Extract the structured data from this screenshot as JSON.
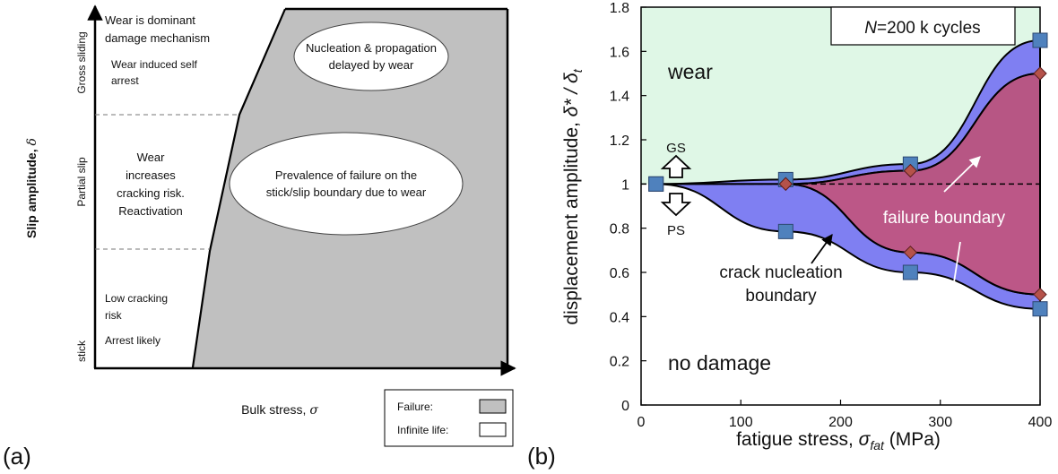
{
  "panel_a": {
    "label": "(a)",
    "y_axis_label": "Slip amplitude, ",
    "y_axis_symbol": "δ",
    "x_axis_label": "Bulk stress, ",
    "x_axis_symbol": "σ",
    "regimes": [
      "Gross sliding",
      "Partial slip",
      "stick"
    ],
    "left_texts": [
      "Wear is dominant",
      "damage mechanism",
      "Wear induced self",
      "arrest",
      "Wear",
      "increases",
      "cracking risk.",
      "Reactivation",
      "Low cracking",
      "risk",
      "Arrest likely"
    ],
    "ellipse_top": [
      "Nucleation & propagation",
      "delayed by wear"
    ],
    "ellipse_mid": [
      "Prevalence of failure on the",
      "stick/slip boundary due to wear"
    ],
    "legend": {
      "failure": "Failure:",
      "infinite": "Infinite life:"
    },
    "colors": {
      "failure": "#c0c0c0",
      "infinite": "#ffffff"
    }
  },
  "panel_b": {
    "label": "(b)",
    "y_label_main": "displacement amplitude, ",
    "y_label_symbol": "δ* / δ",
    "y_label_sub": "t",
    "x_label_main": "fatigue stress, ",
    "x_label_symbol": "σ",
    "x_label_sub": "fat",
    "x_label_unit": " (MPa)",
    "title_box": {
      "italic": "N",
      "rest": "=200 k cycles"
    },
    "region_labels": {
      "wear": "wear",
      "no_damage": "no damage"
    },
    "arrow_labels": {
      "gs": "GS",
      "ps": "PS"
    },
    "annotations": {
      "failure": "failure boundary",
      "crack_line1": "crack nucleation",
      "crack_line2": "boundary"
    },
    "colors": {
      "wear_region": "#dff7e6",
      "blue_band": "#7f7ff2",
      "failure_region": "#b03a72",
      "blue_marker": "#4f81bd",
      "red_marker": "#b5524a"
    }
  },
  "chart_data": {
    "type": "line",
    "xlim": [
      0,
      400
    ],
    "ylim": [
      0,
      1.8
    ],
    "x_ticks": [
      0,
      100,
      200,
      300,
      400
    ],
    "y_ticks": [
      0,
      0.2,
      0.4,
      0.6,
      0.8,
      1,
      1.2,
      1.4,
      1.6,
      1.8
    ],
    "reference_line_y": 1,
    "series": [
      {
        "marker": "square",
        "x": [
          15,
          145,
          270,
          400
        ],
        "y": [
          1.0,
          1.02,
          1.09,
          1.65
        ]
      },
      {
        "marker": "diamond",
        "x": [
          145,
          270,
          400
        ],
        "y": [
          1.0,
          1.06,
          1.5
        ]
      },
      {
        "marker": "square",
        "x": [
          15,
          145,
          270,
          400
        ],
        "y": [
          1.0,
          0.785,
          0.6,
          0.435
        ]
      },
      {
        "marker": "diamond",
        "x": [
          145,
          270,
          400
        ],
        "y": [
          1.0,
          0.69,
          0.5
        ]
      }
    ]
  }
}
